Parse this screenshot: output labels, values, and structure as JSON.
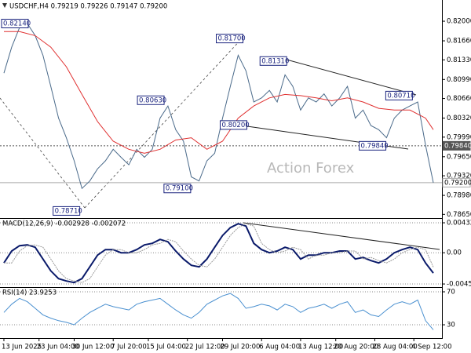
{
  "chart_data": [
    {
      "type": "line",
      "title": "USDCHF,H4  0.79219 0.79226 0.79147 0.79200",
      "watermark": "Action Forex",
      "xlim": [
        0,
        112.6
      ],
      "ylim": [
        0.786,
        0.823
      ],
      "grid": false,
      "xticks": [
        {
          "value": 1,
          "label": "13 Jun 2025"
        },
        {
          "value": 10,
          "label": "23 Jun 04:00"
        },
        {
          "value": 19,
          "label": "30 Jun 12:00"
        },
        {
          "value": 29,
          "label": "7 Jul 20:00"
        },
        {
          "value": 38,
          "label": "15 Jul 04:00"
        },
        {
          "value": 48,
          "label": "22 Jul 12:00"
        },
        {
          "value": 57,
          "label": "29 Jul 20:00"
        },
        {
          "value": 67,
          "label": "6 Aug 04:00"
        },
        {
          "value": 77,
          "label": "13 Aug 12:00"
        },
        {
          "value": 86,
          "label": "20 Aug 20:00"
        },
        {
          "value": 96,
          "label": "28 Aug 04:00"
        },
        {
          "value": 106,
          "label": "4 Sep 12:00"
        }
      ],
      "yticks": [
        {
          "value": 0.82,
          "label": "0.82000"
        },
        {
          "value": 0.8166,
          "label": "0.81660"
        },
        {
          "value": 0.8133,
          "label": "0.81330"
        },
        {
          "value": 0.8099,
          "label": "0.80990"
        },
        {
          "value": 0.8066,
          "label": "0.80660"
        },
        {
          "value": 0.8032,
          "label": "0.80320"
        },
        {
          "value": 0.7999,
          "label": "0.79990"
        },
        {
          "value": 0.7965,
          "label": "0.79650"
        },
        {
          "value": 0.7932,
          "label": "0.79320"
        },
        {
          "value": 0.7898,
          "label": "0.78980"
        },
        {
          "value": 0.7865,
          "label": "0.78650"
        }
      ],
      "series": [
        {
          "color": "#4a6a8a",
          "x": [
            1,
            3,
            5,
            7,
            9,
            11,
            13,
            15,
            17,
            19,
            21,
            23,
            25,
            27,
            29,
            31,
            33,
            35,
            37,
            39,
            41,
            43,
            45,
            47,
            49,
            51,
            53,
            55,
            57,
            59,
            61,
            63,
            65,
            67,
            69,
            71,
            73,
            75,
            77,
            79,
            81,
            83,
            85,
            87,
            89,
            91,
            93,
            95,
            97,
            99,
            101,
            103,
            105,
            107,
            109,
            111
          ],
          "values": [
            0.811,
            0.8155,
            0.8189,
            0.8196,
            0.8175,
            0.8141,
            0.8087,
            0.8032,
            0.7998,
            0.7958,
            0.791,
            0.7923,
            0.7944,
            0.7958,
            0.7978,
            0.7964,
            0.7951,
            0.7978,
            0.7964,
            0.7978,
            0.8032,
            0.8053,
            0.8012,
            0.7992,
            0.793,
            0.7923,
            0.7958,
            0.7971,
            0.8032,
            0.8087,
            0.8141,
            0.8114,
            0.806,
            0.8067,
            0.808,
            0.806,
            0.8107,
            0.8087,
            0.8046,
            0.8067,
            0.806,
            0.8074,
            0.8053,
            0.8067,
            0.8087,
            0.8032,
            0.8046,
            0.8019,
            0.8012,
            0.7998,
            0.8032,
            0.8046,
            0.8053,
            0.806,
            0.7985,
            0.792
          ]
        },
        {
          "color": "#e03030",
          "x": [
            1,
            5,
            9,
            13,
            17,
            21,
            25,
            29,
            33,
            37,
            41,
            45,
            49,
            53,
            57,
            61,
            65,
            69,
            73,
            77,
            81,
            85,
            89,
            93,
            97,
            101,
            105,
            109,
            111
          ],
          "values": [
            0.8182,
            0.8182,
            0.8175,
            0.8155,
            0.8121,
            0.8073,
            0.8026,
            0.7992,
            0.7978,
            0.7971,
            0.7978,
            0.7994,
            0.7998,
            0.7978,
            0.7992,
            0.8032,
            0.8053,
            0.8067,
            0.8073,
            0.8071,
            0.8067,
            0.8062,
            0.8067,
            0.806,
            0.8049,
            0.8046,
            0.8046,
            0.8032,
            0.8012
          ]
        }
      ],
      "annotations": [
        {
          "x": 0.4,
          "value": 0.8214,
          "label": "0.82140"
        },
        {
          "x": 55.4,
          "value": 0.817,
          "label": "0.81700"
        },
        {
          "x": 66.6,
          "value": 0.8131,
          "label": "0.81310"
        },
        {
          "x": 98.8,
          "value": 0.8071,
          "label": "0.80710"
        },
        {
          "x": 35.2,
          "value": 0.8063,
          "label": "0.80630"
        },
        {
          "x": 56.4,
          "value": 0.802,
          "label": "0.80200"
        },
        {
          "x": 92,
          "value": 0.7984,
          "label": "0.79840"
        },
        {
          "x": 42,
          "value": 0.791,
          "label": "0.79100"
        },
        {
          "x": 13.6,
          "value": 0.7871,
          "label": "0.78710"
        }
      ],
      "hlines": [
        {
          "value": 0.7984,
          "label": "0.79840",
          "color": "#555555"
        },
        {
          "value": 0.792,
          "label": "0.79200",
          "color": "#aaaaaa"
        }
      ]
    },
    {
      "type": "line",
      "title": "MACD(12,26,9) -0.002928 -0.002072",
      "xlim": [
        0,
        112.6
      ],
      "ylim": [
        -0.00496,
        0.00478
      ],
      "grid": true,
      "yticks": [
        0.004325,
        {
          "value": 0,
          "label": "0.00"
        },
        -0.004511
      ],
      "series": [
        {
          "color": "#0a1a6a",
          "x": [
            1,
            3,
            5,
            7,
            9,
            11,
            13,
            15,
            17,
            19,
            21,
            23,
            25,
            27,
            29,
            31,
            33,
            35,
            37,
            39,
            41,
            43,
            45,
            47,
            49,
            51,
            53,
            55,
            57,
            59,
            61,
            63,
            65,
            67,
            69,
            71,
            73,
            75,
            77,
            79,
            81,
            83,
            85,
            87,
            89,
            91,
            93,
            95,
            97,
            99,
            101,
            103,
            105,
            107,
            109,
            111
          ],
          "values": [
            -0.00147,
            0.00025,
            0.00102,
            0.00113,
            0.00079,
            -0.00091,
            -0.00261,
            -0.00374,
            -0.00408,
            -0.0043,
            -0.00374,
            -0.00204,
            -0.00034,
            0.00045,
            0.00045,
            0,
            0,
            0.00045,
            0.00113,
            0.00136,
            0.00193,
            0.00159,
            0.00025,
            -0.00091,
            -0.00181,
            -0.00204,
            -0.00091,
            0.00079,
            0.00249,
            0.00362,
            0.00419,
            0.00385,
            0.00136,
            0.00045,
            0,
            0.00025,
            0.00079,
            0.00045,
            -0.00091,
            -0.00034,
            -0.00034,
            0,
            0,
            0.00025,
            0.00025,
            -0.00091,
            -0.00068,
            -0.00113,
            -0.00147,
            -0.00091,
            0,
            0.00045,
            0.00079,
            0.00045,
            -0.00147,
            -0.002928
          ]
        },
        {
          "color": "#9a9a9a",
          "x": [
            1,
            3,
            5,
            7,
            9,
            11,
            13,
            15,
            17,
            19,
            21,
            23,
            25,
            27,
            29,
            31,
            33,
            35,
            37,
            39,
            41,
            43,
            45,
            47,
            49,
            51,
            53,
            55,
            57,
            59,
            61,
            63,
            65,
            67,
            69,
            71,
            73,
            75,
            77,
            79,
            81,
            83,
            85,
            87,
            89,
            91,
            93,
            95,
            97,
            99,
            101,
            103,
            105,
            107,
            109,
            111
          ],
          "values": [
            -0.00147,
            -0.00147,
            0.00025,
            0.00102,
            0.00113,
            0.00079,
            -0.00091,
            -0.00261,
            -0.00374,
            -0.00408,
            -0.0043,
            -0.00374,
            -0.00204,
            -0.00034,
            0.00045,
            0.00045,
            0,
            0,
            0.00045,
            0.00113,
            0.00136,
            0.00193,
            0.00159,
            0.00025,
            -0.00091,
            -0.00181,
            -0.00204,
            -0.00091,
            0.00079,
            0.00249,
            0.00362,
            0.00419,
            0.00385,
            0.00136,
            0.00045,
            0,
            0.00025,
            0.00079,
            0.00045,
            -0.00091,
            -0.00034,
            -0.00034,
            0,
            0,
            0.00025,
            0.00025,
            -0.00091,
            -0.00068,
            -0.00113,
            -0.00147,
            -0.00091,
            0,
            0.00045,
            0.00079,
            0.00045,
            -0.002072
          ]
        }
      ]
    },
    {
      "type": "line",
      "title": "RSI(14) 23.9253",
      "xlim": [
        0,
        112.6
      ],
      "ylim": [
        14.8,
        73.8
      ],
      "grid": true,
      "yticks": [
        70,
        30
      ],
      "series": [
        {
          "color": "#4a90d0",
          "x": [
            1,
            3,
            5,
            7,
            9,
            11,
            13,
            15,
            17,
            19,
            21,
            23,
            25,
            27,
            29,
            31,
            33,
            35,
            37,
            39,
            41,
            43,
            45,
            47,
            49,
            51,
            53,
            55,
            57,
            59,
            61,
            63,
            65,
            67,
            69,
            71,
            73,
            75,
            77,
            79,
            81,
            83,
            85,
            87,
            89,
            91,
            93,
            95,
            97,
            99,
            101,
            103,
            105,
            107,
            109,
            111
          ],
          "values": [
            45,
            55,
            62,
            58,
            50,
            42,
            38,
            35,
            33,
            30,
            38,
            45,
            50,
            55,
            52,
            50,
            48,
            55,
            58,
            60,
            62,
            55,
            48,
            42,
            38,
            45,
            55,
            60,
            65,
            68,
            62,
            50,
            52,
            55,
            53,
            48,
            55,
            52,
            45,
            50,
            52,
            55,
            50,
            55,
            58,
            45,
            48,
            42,
            40,
            48,
            55,
            58,
            55,
            60,
            35,
            23.9253
          ]
        }
      ]
    }
  ]
}
